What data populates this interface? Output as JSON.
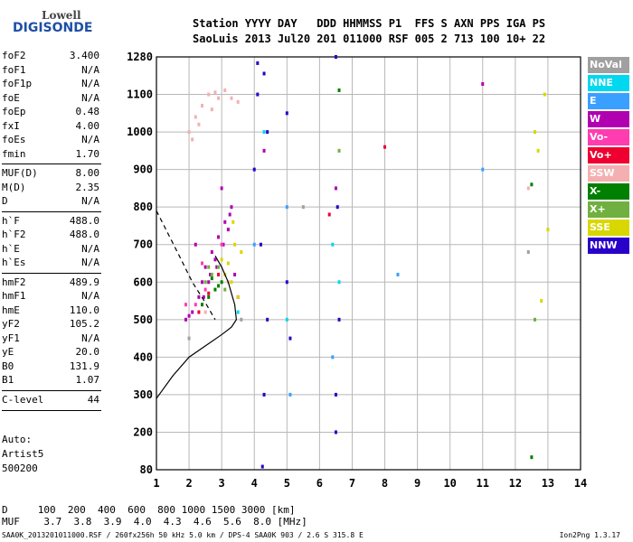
{
  "logo": {
    "line1": "Lowell",
    "line2": "DIGISONDE"
  },
  "header": {
    "line1": "Station YYYY DAY   DDD HHMMSS P1  FFS S AXN PPS IGA PS",
    "line2": "SaoLuis 2013 Jul20 201 011000 RSF 005 2 713 100 10+ 22"
  },
  "params": [
    {
      "label": "foF2",
      "value": "3.400"
    },
    {
      "label": "foF1",
      "value": "N/A"
    },
    {
      "label": "foF1p",
      "value": "N/A"
    },
    {
      "label": "foE",
      "value": "N/A"
    },
    {
      "label": "foEp",
      "value": "0.48"
    },
    {
      "label": "fxI",
      "value": "4.00"
    },
    {
      "label": "foEs",
      "value": "N/A"
    },
    {
      "label": "fmin",
      "value": "1.70"
    },
    {
      "label": "MUF(D)",
      "value": "8.00"
    },
    {
      "label": "M(D)",
      "value": "2.35"
    },
    {
      "label": "D",
      "value": "N/A"
    },
    {
      "label": "h`F",
      "value": "488.0"
    },
    {
      "label": "h`F2",
      "value": "488.0"
    },
    {
      "label": "h`E",
      "value": "N/A"
    },
    {
      "label": "h`Es",
      "value": "N/A"
    },
    {
      "label": "hmF2",
      "value": "489.9"
    },
    {
      "label": "hmF1",
      "value": "N/A"
    },
    {
      "label": "hmE",
      "value": "110.0"
    },
    {
      "label": "yF2",
      "value": "105.2"
    },
    {
      "label": "yF1",
      "value": "N/A"
    },
    {
      "label": "yE",
      "value": "20.0"
    },
    {
      "label": "B0",
      "value": "131.9"
    },
    {
      "label": "B1",
      "value": "1.07"
    },
    {
      "label": "C-level",
      "value": "44"
    }
  ],
  "auto": {
    "line1": "Auto:",
    "line2": "Artist5",
    "line3": "500200"
  },
  "legend": [
    {
      "label": "NoVal",
      "color": "#a0a0a0"
    },
    {
      "label": "NNE",
      "color": "#00d8f0"
    },
    {
      "label": "E",
      "color": "#3aa0ff"
    },
    {
      "label": "W",
      "color": "#b000b0"
    },
    {
      "label": "Vo-",
      "color": "#ff3cb0"
    },
    {
      "label": "Vo+",
      "color": "#ee0030"
    },
    {
      "label": "SSW",
      "color": "#f4b0b0"
    },
    {
      "label": "X-",
      "color": "#008000"
    },
    {
      "label": "X+",
      "color": "#70b040"
    },
    {
      "label": "SSE",
      "color": "#d8d800"
    },
    {
      "label": "NNW",
      "color": "#2800c8"
    }
  ],
  "dmuf": {
    "d_row": "D     100  200  400  600  800 1000 1500 3000 [km]",
    "muf_row": "MUF    3.7  3.8  3.9  4.0  4.3  4.6  5.6  8.0 [MHz]"
  },
  "footer": {
    "left": "SAA0K_2013201011000.RSF / 260fx256h 50 kHz 5.0 km / DPS-4 SAA0K 903 / 2.6 S 315.8 E",
    "right": "Ion2Png 1.3.17"
  },
  "chart_data": {
    "type": "scatter",
    "title": "",
    "xlabel": "",
    "ylabel": "",
    "xlim": [
      1,
      14
    ],
    "ylim": [
      80,
      1280
    ],
    "x_ticks": [
      1,
      2,
      3,
      4,
      5,
      6,
      7,
      8,
      9,
      10,
      11,
      12,
      13,
      14
    ],
    "y_ticks": [
      80,
      200,
      300,
      400,
      500,
      600,
      700,
      800,
      900,
      1000,
      1100,
      1280
    ],
    "y_tick_labels": [
      "80",
      "200",
      "300",
      "400",
      "500",
      "600",
      "700",
      "800",
      "900",
      "1000",
      "1100",
      "1280"
    ],
    "grid": true,
    "legend_position": "right",
    "series": [
      {
        "name": "W",
        "color": "#b000b0",
        "values": [
          [
            1.9,
            500
          ],
          [
            2.1,
            520
          ],
          [
            2.3,
            560
          ],
          [
            2.4,
            600
          ],
          [
            2.5,
            640
          ],
          [
            2.7,
            680
          ],
          [
            2.9,
            720
          ],
          [
            3.1,
            760
          ],
          [
            3.3,
            800
          ],
          [
            3.0,
            850
          ],
          [
            2.2,
            700
          ],
          [
            2.6,
            600
          ],
          [
            2.8,
            660
          ],
          [
            3.2,
            740
          ],
          [
            3.4,
            620
          ],
          [
            4.3,
            950
          ],
          [
            6.5,
            850
          ],
          [
            11.0,
            1150
          ],
          [
            3.5,
            560
          ],
          [
            2.0,
            510
          ],
          [
            2.45,
            560
          ],
          [
            2.65,
            620
          ],
          [
            3.05,
            700
          ],
          [
            3.25,
            780
          ],
          [
            2.85,
            640
          ]
        ]
      },
      {
        "name": "SSW",
        "color": "#f4b0b0",
        "values": [
          [
            2.0,
            1000
          ],
          [
            2.2,
            1040
          ],
          [
            2.4,
            1070
          ],
          [
            2.6,
            1100
          ],
          [
            2.8,
            1110
          ],
          [
            3.1,
            1120
          ],
          [
            3.3,
            1090
          ],
          [
            2.3,
            1020
          ],
          [
            2.1,
            980
          ],
          [
            3.5,
            1080
          ],
          [
            2.5,
            520
          ],
          [
            3.2,
            600
          ],
          [
            12.4,
            850
          ],
          [
            2.7,
            1060
          ],
          [
            2.9,
            1090
          ]
        ]
      },
      {
        "name": "NNW",
        "color": "#2800c8",
        "values": [
          [
            4.1,
            1250
          ],
          [
            4.3,
            1200
          ],
          [
            4.0,
            900
          ],
          [
            4.2,
            700
          ],
          [
            4.4,
            500
          ],
          [
            4.3,
            300
          ],
          [
            5.0,
            1050
          ],
          [
            5.0,
            600
          ],
          [
            6.5,
            1280
          ],
          [
            6.6,
            500
          ],
          [
            6.5,
            200
          ],
          [
            4.25,
            90
          ],
          [
            4.1,
            1100
          ],
          [
            5.1,
            450
          ],
          [
            4.4,
            1000
          ],
          [
            6.55,
            800
          ],
          [
            6.5,
            300
          ]
        ]
      },
      {
        "name": "SSE",
        "color": "#d8d800",
        "values": [
          [
            3.3,
            600
          ],
          [
            3.2,
            650
          ],
          [
            3.4,
            700
          ],
          [
            3.5,
            560
          ],
          [
            3.1,
            620
          ],
          [
            3.6,
            680
          ],
          [
            12.7,
            950
          ],
          [
            12.8,
            550
          ],
          [
            13.0,
            740
          ],
          [
            12.6,
            1000
          ],
          [
            3.0,
            660
          ],
          [
            3.35,
            760
          ],
          [
            12.9,
            1100
          ]
        ]
      },
      {
        "name": "X-",
        "color": "#008000",
        "values": [
          [
            2.6,
            560
          ],
          [
            2.8,
            580
          ],
          [
            3.0,
            600
          ],
          [
            2.4,
            540
          ],
          [
            12.5,
            120
          ],
          [
            12.5,
            860
          ],
          [
            6.6,
            1120
          ],
          [
            2.7,
            610
          ],
          [
            2.9,
            590
          ]
        ]
      },
      {
        "name": "X+",
        "color": "#70b040",
        "values": [
          [
            2.5,
            600
          ],
          [
            2.7,
            620
          ],
          [
            2.9,
            640
          ],
          [
            3.1,
            580
          ],
          [
            6.6,
            950
          ],
          [
            12.6,
            500
          ],
          [
            2.6,
            640
          ]
        ]
      },
      {
        "name": "E",
        "color": "#3aa0ff",
        "values": [
          [
            4.0,
            700
          ],
          [
            6.4,
            400
          ],
          [
            5.1,
            300
          ],
          [
            11.0,
            900
          ],
          [
            8.4,
            620
          ],
          [
            5.0,
            800
          ]
        ]
      },
      {
        "name": "NNE",
        "color": "#00d8f0",
        "values": [
          [
            6.6,
            600
          ],
          [
            4.3,
            1000
          ],
          [
            6.4,
            700
          ],
          [
            5.0,
            500
          ],
          [
            3.5,
            520
          ]
        ]
      },
      {
        "name": "Vo-",
        "color": "#ff3cb0",
        "values": [
          [
            2.2,
            540
          ],
          [
            2.5,
            580
          ],
          [
            3.0,
            700
          ],
          [
            2.4,
            650
          ],
          [
            1.9,
            540
          ]
        ]
      },
      {
        "name": "Vo+",
        "color": "#ee0030",
        "values": [
          [
            2.3,
            520
          ],
          [
            2.6,
            570
          ],
          [
            2.9,
            620
          ],
          [
            8.0,
            960
          ],
          [
            6.3,
            780
          ]
        ]
      },
      {
        "name": "NoVal",
        "color": "#a0a0a0",
        "values": [
          [
            2.0,
            450
          ],
          [
            3.6,
            500
          ],
          [
            5.5,
            800
          ],
          [
            12.4,
            680
          ]
        ]
      }
    ],
    "lines": [
      {
        "style": "dashed",
        "points": [
          [
            1.0,
            790
          ],
          [
            1.7,
            670
          ],
          [
            2.1,
            600
          ],
          [
            2.5,
            545
          ],
          [
            2.8,
            500
          ]
        ]
      },
      {
        "style": "solid",
        "points": [
          [
            1.0,
            290
          ],
          [
            1.5,
            350
          ],
          [
            2.0,
            400
          ],
          [
            2.5,
            430
          ],
          [
            3.0,
            460
          ],
          [
            3.3,
            480
          ],
          [
            3.45,
            500
          ],
          [
            3.4,
            540
          ],
          [
            3.2,
            600
          ],
          [
            3.0,
            640
          ],
          [
            2.8,
            670
          ]
        ]
      }
    ]
  }
}
